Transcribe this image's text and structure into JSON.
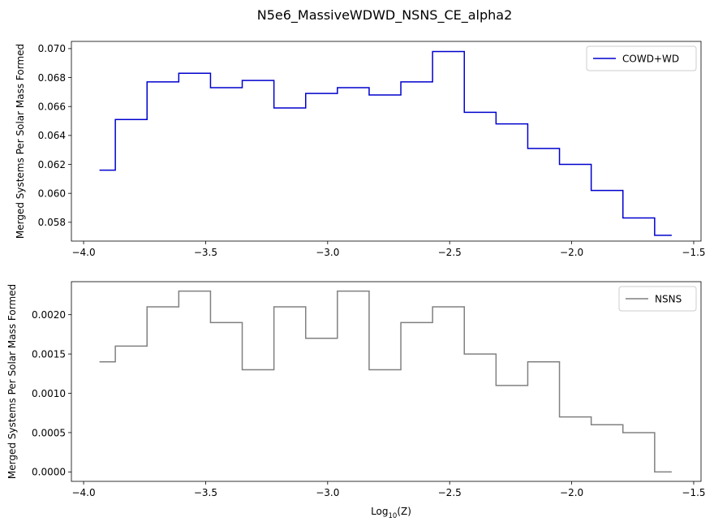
{
  "figure_title": "N5e6_MassiveWDWD_NSNS_CE_alpha2",
  "xlabel_main": "Log",
  "xlabel_sub": "10",
  "xlabel_tail": "(Z)",
  "chart_data": [
    {
      "type": "line",
      "drawstyle": "step",
      "title": "",
      "xlabel": "",
      "ylabel": "Merged Systems Per Solar Mass Formed",
      "xlim": [
        -4.05,
        -1.47
      ],
      "ylim": [
        0.0567,
        0.0705
      ],
      "xticks": [
        -4.0,
        -3.5,
        -3.0,
        -2.5,
        -2.0,
        -1.5
      ],
      "xtick_labels": [
        "−4.0",
        "−3.5",
        "−3.0",
        "−2.5",
        "−2.0",
        "−1.5"
      ],
      "yticks": [
        0.058,
        0.06,
        0.062,
        0.064,
        0.066,
        0.068,
        0.07
      ],
      "ytick_labels": [
        "0.058",
        "0.060",
        "0.062",
        "0.064",
        "0.066",
        "0.068",
        "0.070"
      ],
      "legend": "top-right",
      "series": [
        {
          "name": "COWD+WD",
          "color": "#0000cd",
          "x": [
            -3.935,
            -3.87,
            -3.74,
            -3.61,
            -3.48,
            -3.35,
            -3.22,
            -3.09,
            -2.96,
            -2.83,
            -2.7,
            -2.57,
            -2.44,
            -2.31,
            -2.18,
            -2.05,
            -1.92,
            -1.79,
            -1.66,
            -1.59
          ],
          "values": [
            0.0616,
            0.0651,
            0.0677,
            0.0683,
            0.0673,
            0.0678,
            0.0659,
            0.0669,
            0.0673,
            0.0668,
            0.0677,
            0.0698,
            0.0656,
            0.0648,
            0.0631,
            0.062,
            0.0602,
            0.0583,
            0.0571,
            0.0571
          ]
        }
      ]
    },
    {
      "type": "line",
      "drawstyle": "step",
      "title": "",
      "xlabel": "Log10(Z)",
      "ylabel": "Merged Systems Per Solar Mass Formed",
      "xlim": [
        -4.05,
        -1.47
      ],
      "ylim": [
        -0.00012,
        0.00242
      ],
      "xticks": [
        -4.0,
        -3.5,
        -3.0,
        -2.5,
        -2.0,
        -1.5
      ],
      "xtick_labels": [
        "−4.0",
        "−3.5",
        "−3.0",
        "−2.5",
        "−2.0",
        "−1.5"
      ],
      "yticks": [
        0.0,
        0.0005,
        0.001,
        0.0015,
        0.002
      ],
      "ytick_labels": [
        "0.0000",
        "0.0005",
        "0.0010",
        "0.0015",
        "0.0020"
      ],
      "legend": "top-right",
      "series": [
        {
          "name": "NSNS",
          "color": "#808080",
          "x": [
            -3.935,
            -3.87,
            -3.74,
            -3.61,
            -3.48,
            -3.35,
            -3.22,
            -3.09,
            -2.96,
            -2.83,
            -2.7,
            -2.57,
            -2.44,
            -2.31,
            -2.18,
            -2.05,
            -1.92,
            -1.79,
            -1.66,
            -1.59
          ],
          "values": [
            0.0014,
            0.0016,
            0.0021,
            0.0023,
            0.0019,
            0.0013,
            0.0021,
            0.0017,
            0.0023,
            0.0013,
            0.0019,
            0.0021,
            0.0015,
            0.0011,
            0.0014,
            0.0007,
            0.0006,
            0.0005,
            0.0,
            0.0
          ]
        }
      ]
    }
  ]
}
